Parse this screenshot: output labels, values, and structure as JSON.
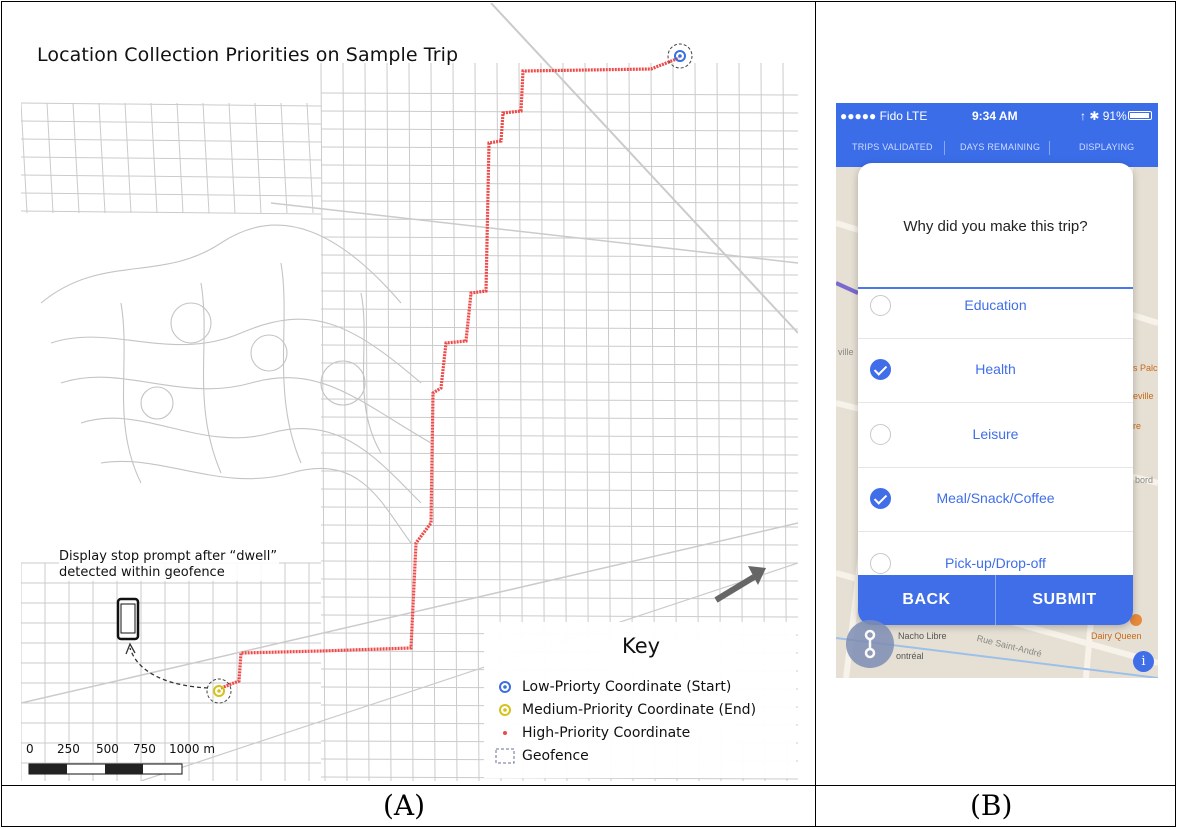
{
  "panel_a": {
    "title": "Location Collection Priorities on Sample Trip",
    "dwell_note": "Display stop prompt after “dwell” detected within geofence",
    "key": {
      "title": "Key",
      "items": [
        {
          "label": "Low-Priorty Coordinate (Start)",
          "color": "#3a6fe0"
        },
        {
          "label": "Medium-Priority Coordinate (End)",
          "color": "#d4c21a"
        },
        {
          "label": "High-Priority Coordinate",
          "color": "#ee4a4a"
        },
        {
          "label": "Geofence",
          "color": "#6a6f9a"
        }
      ]
    },
    "scale_bar": {
      "labels": [
        "0",
        "250",
        "500",
        "750",
        "1000 m"
      ]
    },
    "caption": "(A)"
  },
  "panel_b": {
    "status": {
      "carrier": "●●●●● Fido  LTE",
      "time": "9:34 AM",
      "battery": "↑ ✱ 91%"
    },
    "stats_tabs": [
      "TRIPS VALIDATED",
      "DAYS REMAINING",
      "DISPLAYING"
    ],
    "question": "Why did you make this trip?",
    "options": [
      {
        "label": "Education",
        "checked": false
      },
      {
        "label": "Health",
        "checked": true
      },
      {
        "label": "Leisure",
        "checked": false
      },
      {
        "label": "Meal/Snack/Coffee",
        "checked": true
      },
      {
        "label": "Pick-up/Drop-off",
        "checked": false
      }
    ],
    "buttons": {
      "back": "BACK",
      "submit": "SUBMIT"
    },
    "map_labels": [
      "Nacho Libre",
      "Dairy Queen",
      "Rue Saint-André",
      "ontréal",
      "s Palc",
      "eville",
      "re",
      "bord",
      "ville"
    ],
    "info_glyph": "i",
    "caption": "(B)"
  },
  "colors": {
    "route": "#ee4a4a",
    "phone_blue": "#3f6ee8",
    "street": "#c9c9c9"
  }
}
